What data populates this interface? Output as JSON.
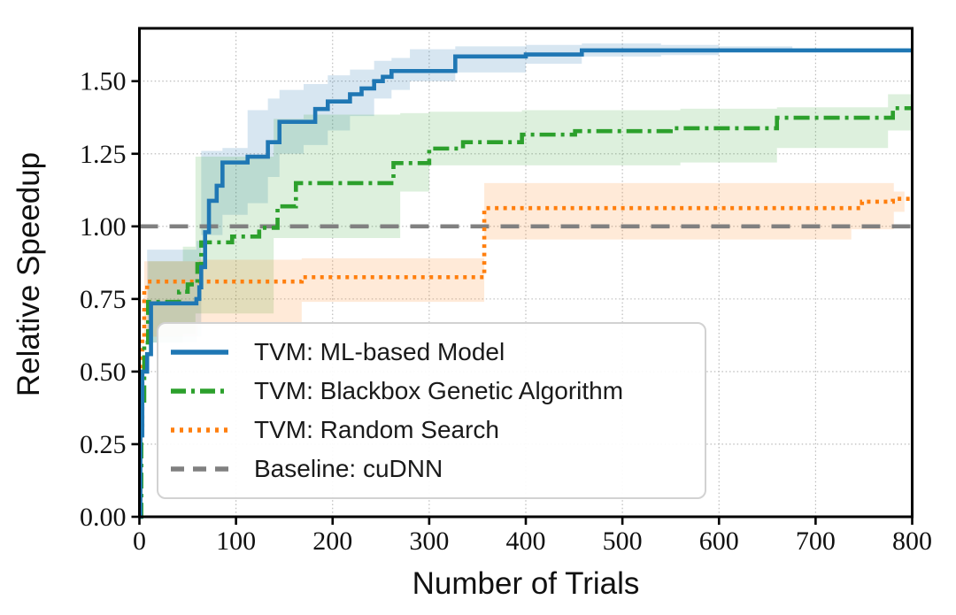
{
  "chart_data": {
    "type": "line",
    "title": "",
    "xlabel": "Number of Trials",
    "ylabel": "Relative Speedup",
    "xlim": [
      0,
      800
    ],
    "ylim": [
      0,
      1.682
    ],
    "grid": true,
    "legend_position": "lower left",
    "xticks": [
      0,
      100,
      200,
      300,
      400,
      500,
      600,
      700,
      800
    ],
    "xtick_labels": [
      "0",
      "100",
      "200",
      "300",
      "400",
      "500",
      "600",
      "700",
      "800"
    ],
    "yticks": [
      0,
      0.25,
      0.5,
      0.75,
      1.0,
      1.25,
      1.5
    ],
    "ytick_labels": [
      "0.00",
      "0.25",
      "0.50",
      "0.75",
      "1.00",
      "1.25",
      "1.50"
    ],
    "series": [
      {
        "name": "TVM: ML-based Model",
        "color": "#1f77b4",
        "style": "solid",
        "points": [
          [
            0,
            0
          ],
          [
            1,
            0.28
          ],
          [
            3,
            0.5
          ],
          [
            8,
            0.56
          ],
          [
            12,
            0.735
          ],
          [
            59,
            0.75
          ],
          [
            62,
            0.79
          ],
          [
            64,
            0.86
          ],
          [
            68,
            0.98
          ],
          [
            72,
            1.088
          ],
          [
            80,
            1.14
          ],
          [
            86,
            1.22
          ],
          [
            112,
            1.24
          ],
          [
            133,
            1.29
          ],
          [
            145,
            1.36
          ],
          [
            182,
            1.404
          ],
          [
            195,
            1.43
          ],
          [
            218,
            1.455
          ],
          [
            230,
            1.475
          ],
          [
            243,
            1.5
          ],
          [
            252,
            1.515
          ],
          [
            261,
            1.535
          ],
          [
            327,
            1.585
          ],
          [
            400,
            1.592
          ],
          [
            458,
            1.606
          ],
          [
            800,
            1.606
          ]
        ],
        "band": {
          "opacity": 0.18,
          "points": [
            [
              8,
              0.6,
              0.92
            ],
            [
              59,
              0.62,
              0.95
            ],
            [
              64,
              0.97,
              1.26
            ],
            [
              86,
              1.04,
              1.27
            ],
            [
              112,
              1.08,
              1.4
            ],
            [
              133,
              1.17,
              1.44
            ],
            [
              145,
              1.25,
              1.47
            ],
            [
              170,
              1.28,
              1.49
            ],
            [
              195,
              1.33,
              1.52
            ],
            [
              218,
              1.38,
              1.54
            ],
            [
              243,
              1.44,
              1.57
            ],
            [
              261,
              1.47,
              1.58
            ],
            [
              280,
              1.5,
              1.61
            ],
            [
              327,
              1.53,
              1.62
            ],
            [
              400,
              1.56,
              1.625
            ],
            [
              458,
              1.585,
              1.63
            ],
            [
              540,
              1.59,
              1.625
            ],
            [
              600,
              1.6,
              1.62
            ],
            [
              676,
              1.606,
              1.606
            ],
            [
              800,
              1.606,
              1.606
            ]
          ]
        }
      },
      {
        "name": "TVM: Blackbox Genetic Algorithm",
        "color": "#2ca02c",
        "style": "dashdot",
        "points": [
          [
            0,
            0
          ],
          [
            2,
            0.4
          ],
          [
            5,
            0.6
          ],
          [
            9,
            0.74
          ],
          [
            41,
            0.775
          ],
          [
            50,
            0.8
          ],
          [
            60,
            0.87
          ],
          [
            64,
            0.945
          ],
          [
            96,
            0.965
          ],
          [
            124,
            0.995
          ],
          [
            143,
            1.069
          ],
          [
            162,
            1.149
          ],
          [
            263,
            1.218
          ],
          [
            300,
            1.268
          ],
          [
            335,
            1.29
          ],
          [
            396,
            1.316
          ],
          [
            451,
            1.328
          ],
          [
            550,
            1.338
          ],
          [
            660,
            1.374
          ],
          [
            780,
            1.407
          ],
          [
            800,
            1.407
          ]
        ],
        "band": {
          "opacity": 0.16,
          "points": [
            [
              9,
              0.6,
              0.88
            ],
            [
              45,
              0.63,
              0.93
            ],
            [
              58,
              0.7,
              1.24
            ],
            [
              139,
              0.96,
              1.37
            ],
            [
              170,
              0.96,
              1.385
            ],
            [
              270,
              1.12,
              1.39
            ],
            [
              300,
              1.21,
              1.395
            ],
            [
              396,
              1.21,
              1.4
            ],
            [
              560,
              1.22,
              1.405
            ],
            [
              660,
              1.27,
              1.41
            ],
            [
              775,
              1.33,
              1.455
            ],
            [
              800,
              1.33,
              1.455
            ]
          ]
        }
      },
      {
        "name": "TVM: Random Search",
        "color": "#ff7f0e",
        "style": "dotted",
        "points": [
          [
            0,
            0
          ],
          [
            1,
            0.3
          ],
          [
            3,
            0.62
          ],
          [
            5,
            0.78
          ],
          [
            8,
            0.81
          ],
          [
            168,
            0.825
          ],
          [
            357,
            1.063
          ],
          [
            748,
            1.085
          ],
          [
            780,
            1.095
          ],
          [
            800,
            1.098
          ]
        ],
        "band": {
          "opacity": 0.16,
          "points": [
            [
              5,
              0.62,
              0.88
            ],
            [
              60,
              0.66,
              0.885
            ],
            [
              168,
              0.74,
              0.89
            ],
            [
              357,
              0.955,
              1.149
            ],
            [
              737,
              0.99,
              1.149
            ],
            [
              781,
              1.05,
              1.12
            ],
            [
              792,
              1.098,
              1.098
            ],
            [
              800,
              1.098,
              1.098
            ]
          ]
        }
      },
      {
        "name": "Baseline: cuDNN",
        "color": "#808080",
        "style": "dashed",
        "points": [
          [
            0,
            1.0
          ],
          [
            800,
            1.0
          ]
        ]
      }
    ]
  }
}
